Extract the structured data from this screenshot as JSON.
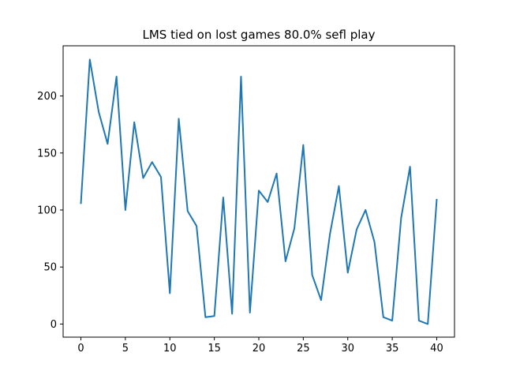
{
  "chart_data": {
    "type": "line",
    "title": "LMS tied on lost games 80.0% sefl play",
    "xlabel": "",
    "ylabel": "",
    "xlim": [
      -2,
      42
    ],
    "ylim": [
      -11.5,
      244
    ],
    "x_ticks": [
      0,
      5,
      10,
      15,
      20,
      25,
      30,
      35,
      40
    ],
    "y_ticks": [
      0,
      50,
      100,
      150,
      200
    ],
    "grid": false,
    "line_color": "#1f77b4",
    "series": [
      {
        "x": [
          0,
          1,
          2,
          3,
          4,
          5,
          6,
          7,
          8,
          9,
          10,
          11,
          12,
          13,
          14,
          15,
          16,
          17,
          18,
          19,
          20,
          21,
          22,
          23,
          24,
          25,
          26,
          27,
          28,
          29,
          30,
          31,
          32,
          33,
          34,
          35,
          36,
          37,
          38,
          39,
          40
        ],
        "values": [
          106,
          232,
          186,
          158,
          217,
          100,
          177,
          128,
          142,
          129,
          27,
          180,
          99,
          86,
          6,
          7,
          111,
          9,
          217,
          10,
          117,
          107,
          132,
          55,
          84,
          157,
          43,
          21,
          79,
          121,
          45,
          83,
          100,
          72,
          6,
          3,
          93,
          138,
          3,
          0,
          109
        ]
      }
    ]
  }
}
